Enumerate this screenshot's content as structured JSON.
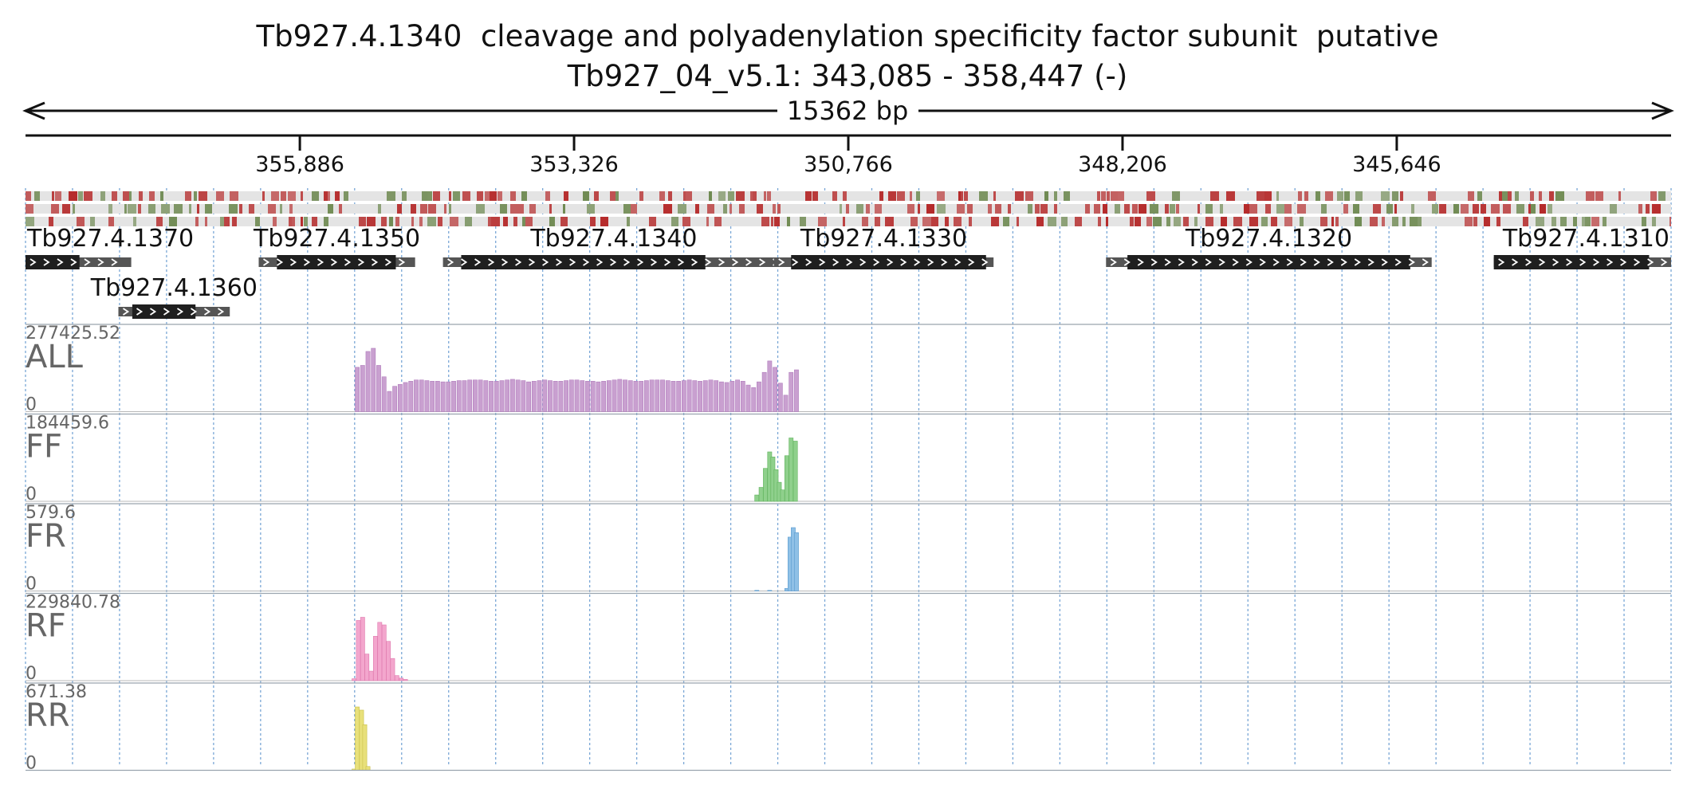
{
  "header": {
    "title": "Tb927.4.1340  cleavage and polyadenylation specificity factor subunit  putative",
    "subtitle": "Tb927_04_v5.1: 343,085 - 358,447 (-)"
  },
  "chart_data": {
    "type": "bar",
    "chromosome": "Tb927_04_v5.1",
    "strand": "-",
    "region": {
      "start": 343085,
      "end": 358447
    },
    "span_label": "15362 bp",
    "axis": {
      "reversed": true,
      "ticks": [
        355886,
        353326,
        350766,
        348206,
        345646
      ],
      "tick_labels": [
        "355,886",
        "353,326",
        "350,766",
        "348,206",
        "345,646"
      ],
      "grid": true
    },
    "genes": [
      {
        "id": "Tb927.4.1370",
        "start": 357460,
        "end": 358447,
        "cds": [
          357943,
          358447
        ],
        "row": 1
      },
      {
        "id": "Tb927.4.1360",
        "start": 356540,
        "end": 357580,
        "cds": [
          356860,
          357450
        ],
        "row": 2
      },
      {
        "id": "Tb927.4.1350",
        "start": 354810,
        "end": 356270,
        "cds": [
          354990,
          356100
        ],
        "row": 1
      },
      {
        "id": "Tb927.4.1340",
        "start": 351360,
        "end": 354550,
        "cds": [
          352100,
          354380
        ],
        "row": 1
      },
      {
        "id": "Tb927.4.1330",
        "start": 349410,
        "end": 351460,
        "cds": [
          349480,
          351300
        ],
        "row": 1
      },
      {
        "id": "Tb927.4.1320",
        "start": 345320,
        "end": 348360,
        "cds": [
          345520,
          348160
        ],
        "row": 1
      },
      {
        "id": "Tb927.4.1310",
        "start": 343085,
        "end": 344740,
        "cds": [
          343290,
          344740
        ],
        "row": 1
      }
    ],
    "tracks": [
      {
        "name": "ALL",
        "max_label": "277425.52",
        "max": 277425.52,
        "min_label": "0",
        "color": "#c9a0d0",
        "edge": "#b07cbc",
        "series": [
          [
            355350,
            0.7
          ],
          [
            355300,
            0.73
          ],
          [
            355250,
            0.95
          ],
          [
            355200,
            1.0
          ],
          [
            355150,
            0.73
          ],
          [
            355100,
            0.55
          ],
          [
            355050,
            0.32
          ],
          [
            355000,
            0.4
          ],
          [
            354950,
            0.43
          ],
          [
            354900,
            0.46
          ],
          [
            354850,
            0.48
          ],
          [
            354800,
            0.5
          ],
          [
            354750,
            0.5
          ],
          [
            354700,
            0.49
          ],
          [
            354650,
            0.48
          ],
          [
            354600,
            0.48
          ],
          [
            354550,
            0.47
          ],
          [
            354500,
            0.47
          ],
          [
            354450,
            0.48
          ],
          [
            354400,
            0.49
          ],
          [
            354350,
            0.49
          ],
          [
            354300,
            0.5
          ],
          [
            354250,
            0.5
          ],
          [
            354200,
            0.5
          ],
          [
            354150,
            0.49
          ],
          [
            354100,
            0.48
          ],
          [
            354050,
            0.48
          ],
          [
            354000,
            0.49
          ],
          [
            353950,
            0.5
          ],
          [
            353900,
            0.51
          ],
          [
            353850,
            0.5
          ],
          [
            353800,
            0.49
          ],
          [
            353750,
            0.47
          ],
          [
            353700,
            0.48
          ],
          [
            353650,
            0.49
          ],
          [
            353600,
            0.5
          ],
          [
            353550,
            0.49
          ],
          [
            353500,
            0.48
          ],
          [
            353450,
            0.48
          ],
          [
            353400,
            0.49
          ],
          [
            353350,
            0.5
          ],
          [
            353300,
            0.5
          ],
          [
            353250,
            0.49
          ],
          [
            353200,
            0.48
          ],
          [
            353150,
            0.48
          ],
          [
            353100,
            0.47
          ],
          [
            353050,
            0.48
          ],
          [
            353000,
            0.49
          ],
          [
            352950,
            0.5
          ],
          [
            352900,
            0.51
          ],
          [
            352850,
            0.5
          ],
          [
            352800,
            0.49
          ],
          [
            352750,
            0.48
          ],
          [
            352700,
            0.48
          ],
          [
            352650,
            0.49
          ],
          [
            352600,
            0.5
          ],
          [
            352550,
            0.5
          ],
          [
            352500,
            0.5
          ],
          [
            352450,
            0.49
          ],
          [
            352400,
            0.48
          ],
          [
            352350,
            0.48
          ],
          [
            352300,
            0.49
          ],
          [
            352250,
            0.5
          ],
          [
            352200,
            0.49
          ],
          [
            352150,
            0.48
          ],
          [
            352100,
            0.49
          ],
          [
            352050,
            0.5
          ],
          [
            352000,
            0.49
          ],
          [
            351950,
            0.47
          ],
          [
            351900,
            0.46
          ],
          [
            351850,
            0.48
          ],
          [
            351800,
            0.5
          ],
          [
            351750,
            0.48
          ],
          [
            351700,
            0.42
          ],
          [
            351650,
            0.38
          ],
          [
            351600,
            0.47
          ],
          [
            351550,
            0.62
          ],
          [
            351500,
            0.8
          ],
          [
            351450,
            0.7
          ],
          [
            351400,
            0.45
          ],
          [
            351350,
            0.26
          ],
          [
            351300,
            0.62
          ],
          [
            351250,
            0.66
          ]
        ]
      },
      {
        "name": "FF",
        "max_label": "184459.6",
        "max": 184459.6,
        "min_label": "0",
        "color": "#8fd08c",
        "edge": "#5fb25c",
        "series": [
          [
            351620,
            0.1
          ],
          [
            351580,
            0.22
          ],
          [
            351540,
            0.52
          ],
          [
            351500,
            0.78
          ],
          [
            351470,
            0.7
          ],
          [
            351440,
            0.5
          ],
          [
            351410,
            0.3
          ],
          [
            351380,
            0.18
          ],
          [
            351340,
            0.72
          ],
          [
            351300,
            1.0
          ],
          [
            351260,
            0.95
          ]
        ]
      },
      {
        "name": "FR",
        "max_label": "579.6",
        "max": 579.6,
        "min_label": "0",
        "color": "#8fc0e6",
        "edge": "#5a9bd0",
        "series": [
          [
            351620,
            0.01
          ],
          [
            351500,
            0.01
          ],
          [
            351340,
            0.04
          ],
          [
            351310,
            0.85
          ],
          [
            351280,
            1.0
          ],
          [
            351250,
            0.92
          ]
        ]
      },
      {
        "name": "RF",
        "max_label": "229840.78",
        "max": 229840.78,
        "min_label": "0",
        "color": "#f3a6cd",
        "edge": "#df78ad",
        "series": [
          [
            355380,
            0.03
          ],
          [
            355340,
            0.95
          ],
          [
            355300,
            1.0
          ],
          [
            355260,
            0.42
          ],
          [
            355220,
            0.15
          ],
          [
            355180,
            0.7
          ],
          [
            355140,
            0.92
          ],
          [
            355100,
            0.88
          ],
          [
            355060,
            0.62
          ],
          [
            355020,
            0.35
          ],
          [
            354980,
            0.08
          ],
          [
            354940,
            0.04
          ],
          [
            354900,
            0.02
          ]
        ]
      },
      {
        "name": "RR",
        "max_label": "671.38",
        "max": 671.38,
        "min_label": "0",
        "color": "#e8e07a",
        "edge": "#c9c04a",
        "series": [
          [
            355380,
            0.02
          ],
          [
            355350,
            1.0
          ],
          [
            355310,
            0.95
          ],
          [
            355280,
            0.72
          ],
          [
            355250,
            0.06
          ]
        ]
      }
    ]
  },
  "colors": {
    "gene_cds": "#1f1f1f",
    "gene_utr": "#555555",
    "grid": "#7aa7d6",
    "snp_red": "#b52a2a",
    "snp_green": "#6f8a52"
  }
}
